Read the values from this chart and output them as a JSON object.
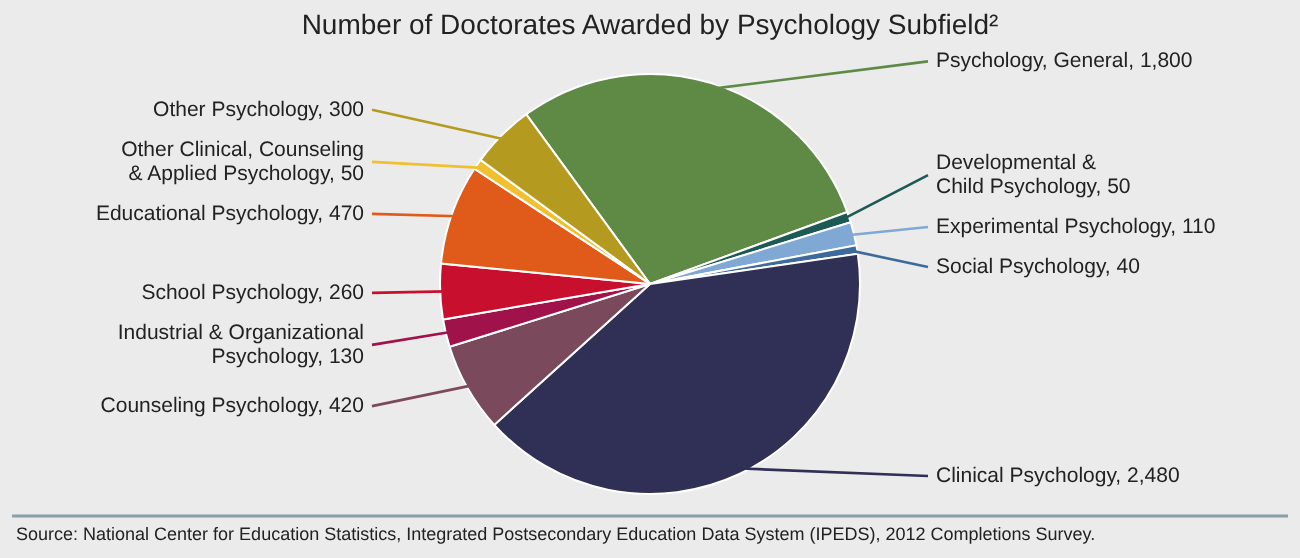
{
  "chart_data": {
    "type": "pie",
    "title": "Number of Doctorates Awarded by Psychology Subfield²",
    "categories": [
      "Psychology, General",
      "Developmental & Child Psychology",
      "Experimental Psychology",
      "Social Psychology",
      "Clinical Psychology",
      "Counseling Psychology",
      "Industrial & Organizational Psychology",
      "School Psychology",
      "Educational Psychology",
      "Other Clinical, Counseling & Applied Psychology",
      "Other Psychology"
    ],
    "values": [
      1800,
      50,
      110,
      40,
      2480,
      420,
      130,
      260,
      470,
      50,
      300
    ],
    "colors": [
      "#5f8a45",
      "#1e5a55",
      "#7fa9d4",
      "#3d6a9a",
      "#302f55",
      "#7a4a5c",
      "#a0124a",
      "#c8102e",
      "#e05a1a",
      "#f0c030",
      "#b59a20"
    ],
    "value_labels": [
      "1,800",
      "50",
      "110",
      "40",
      "2,480",
      "420",
      "130",
      "260",
      "470",
      "50",
      "300"
    ],
    "legend": false,
    "annotations": [
      "Source: National Center for Education Statistics, Integrated Postsecondary Education Data System (IPEDS), 2012 Completions Survey."
    ]
  }
}
